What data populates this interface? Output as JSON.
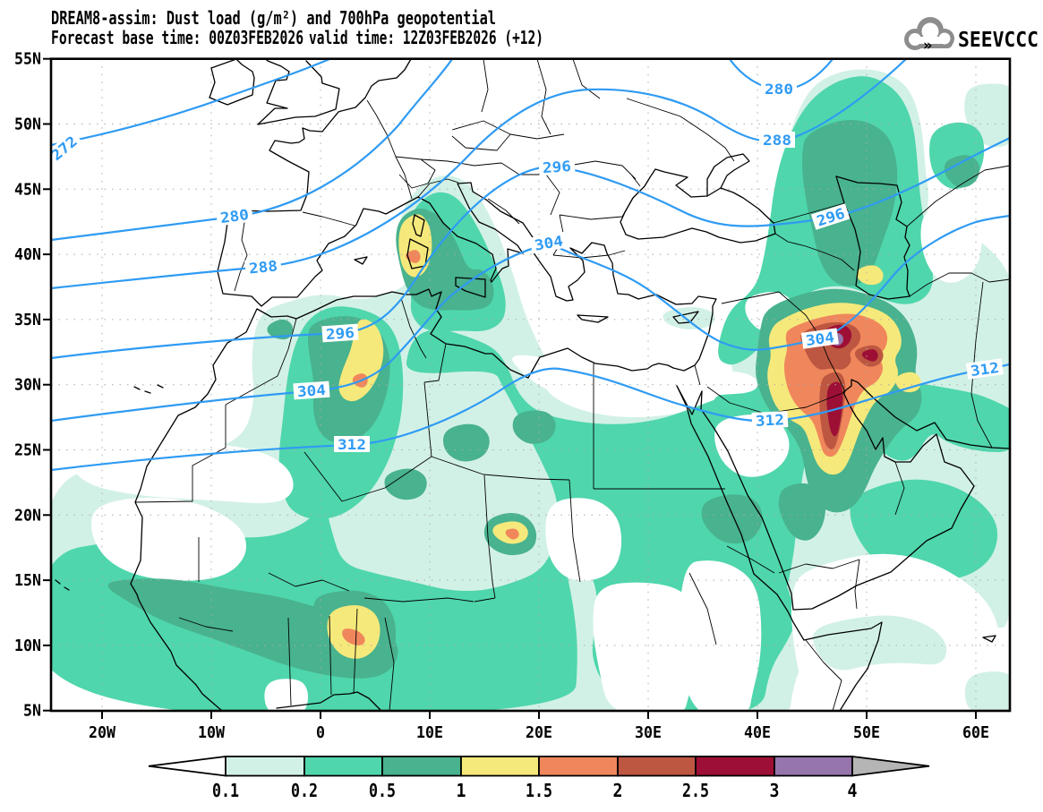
{
  "title": {
    "line1": "DREAM8-assim: Dust load (g/m²) and 700hPa geopotential",
    "forecast": "Forecast base time: 00Z03FEB2026",
    "valid": "valid time: 12Z03FEB2026 (+12)"
  },
  "logo": {
    "text": "SEEVCCC"
  },
  "axes": {
    "lat": [
      "55N",
      "50N",
      "45N",
      "40N",
      "35N",
      "30N",
      "25N",
      "20N",
      "15N",
      "10N",
      "5N"
    ],
    "lon": [
      "20W",
      "10W",
      "0",
      "10E",
      "20E",
      "30E",
      "40E",
      "50E",
      "60E"
    ]
  },
  "contours": {
    "values": [
      "272",
      "280",
      "280",
      "288",
      "288",
      "296",
      "296",
      "296",
      "304",
      "304",
      "304",
      "312",
      "312",
      "312"
    ]
  },
  "colorbar": {
    "labels": [
      "0.1",
      "0.2",
      "0.5",
      "1",
      "1.5",
      "2",
      "2.5",
      "3",
      "4"
    ]
  },
  "palette": {
    "level1": "#d2f1e6",
    "level2": "#4fd6ac",
    "level3": "#49b28e",
    "level4": "#f6e97b",
    "level5": "#f0875c",
    "level6": "#bd5741",
    "level7": "#9e0f35",
    "level8": "#9674ac",
    "above": "#b5b5b5",
    "contour": "#2f9bf3",
    "logo_gray": "#8d8d8d"
  },
  "chart_data": {
    "type": "heatmap",
    "title": "Dust load (g/m²) and 700hPa geopotential",
    "dust_levels_g_m2": [
      0.1,
      0.2,
      0.5,
      1,
      1.5,
      2,
      2.5,
      3,
      4
    ],
    "geopotential_contours": [
      272,
      280,
      288,
      296,
      304,
      312
    ],
    "x_range": [
      "20W",
      "60E"
    ],
    "y_range": [
      "5N",
      "55N"
    ],
    "grid": "dotted 10deg lon / 5deg lat",
    "legend_position": "bottom"
  }
}
